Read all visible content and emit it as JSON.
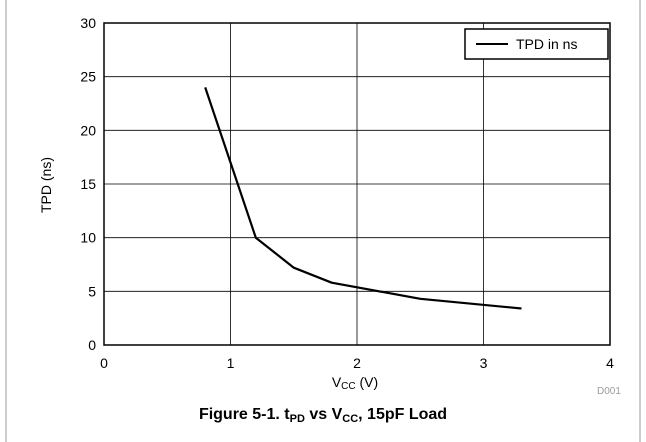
{
  "chart_data": {
    "type": "line",
    "xlabel_main": "V",
    "xlabel_sub": "CC",
    "xlabel_unit": " (V)",
    "ylabel": "TPD (ns)",
    "xlim": [
      0,
      4
    ],
    "ylim": [
      0,
      30
    ],
    "x_ticks": [
      "0",
      "1",
      "2",
      "3",
      "4"
    ],
    "y_ticks": [
      "0",
      "5",
      "10",
      "15",
      "20",
      "25",
      "30"
    ],
    "grid": true,
    "legend_position": "top-right",
    "series": [
      {
        "name": "TPD in ns",
        "color": "#000000",
        "x": [
          0.8,
          1.0,
          1.2,
          1.5,
          1.8,
          2.5,
          3.3
        ],
        "y": [
          24,
          17,
          10,
          7.2,
          5.8,
          4.3,
          3.4
        ]
      }
    ],
    "figure_code": "D001",
    "caption": {
      "prefix": "Figure 5-1. t",
      "sub1": "PD",
      "middle": " vs V",
      "sub2": "CC",
      "suffix": ", 15pF Load"
    }
  }
}
